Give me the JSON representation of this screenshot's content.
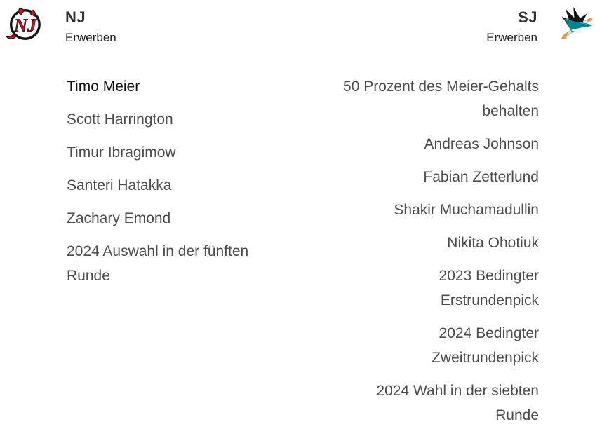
{
  "widget": {
    "background": "#ffffff"
  },
  "colors": {
    "primary_text": "#111111",
    "secondary_text": "#4d4d4d",
    "header_text": "#333333",
    "devils_red": "#ce1126",
    "sharks_teal": "#00838f",
    "logo_black": "#141414"
  },
  "header": {
    "left_team": {
      "abbr": "NJ",
      "action_label": "Erwerben",
      "logo_icon": "nj-devils-logo"
    },
    "right_team": {
      "abbr": "SJ",
      "action_label": "Erwerben",
      "logo_icon": "sj-sharks-logo"
    }
  },
  "acquisitions": {
    "left": {
      "items": [
        {
          "label": "Timo Meier",
          "primary": true
        },
        {
          "label": "Scott Harrington",
          "primary": false
        },
        {
          "label": "Timur Ibragimow",
          "primary": false
        },
        {
          "label": "Santeri Hatakka",
          "primary": false
        },
        {
          "label": "Zachary Emond",
          "primary": false
        },
        {
          "label": "2024 Auswahl in der fünften\nRunde",
          "primary": false
        }
      ]
    },
    "right": {
      "items": [
        {
          "label": "50 Prozent des Meier-Gehalts\nbehalten",
          "primary": false
        },
        {
          "label": "Andreas Johnson",
          "primary": false
        },
        {
          "label": "Fabian Zetterlund",
          "primary": false
        },
        {
          "label": "Shakir Muchamadullin",
          "primary": false
        },
        {
          "label": "Nikita Ohotiuk",
          "primary": false
        },
        {
          "label": "2023 Bedingter\nErstrundenpick",
          "primary": false
        },
        {
          "label": "2024 Bedingter\nZweitrundenpick",
          "primary": false
        },
        {
          "label": "2024 Wahl in der siebten\nRunde",
          "primary": false
        }
      ]
    }
  }
}
